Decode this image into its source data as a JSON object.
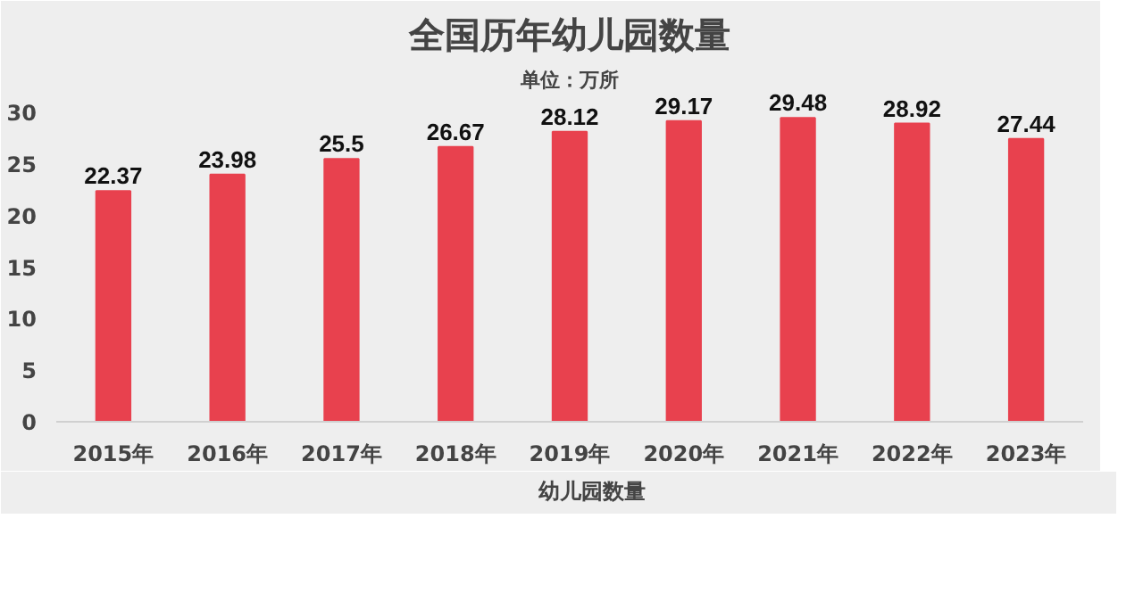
{
  "chart_data": {
    "type": "bar",
    "title": "全国历年幼儿园数量",
    "subtitle": "单位：万所",
    "categories": [
      "2015年",
      "2016年",
      "2017年",
      "2018年",
      "2019年",
      "2020年",
      "2021年",
      "2022年",
      "2023年"
    ],
    "series": [
      {
        "name": "幼儿园数量",
        "color": "#e8414e",
        "values": [
          22.37,
          23.98,
          25.5,
          26.67,
          28.12,
          29.17,
          29.48,
          28.92,
          27.44
        ]
      }
    ],
    "ylim": [
      0,
      32
    ],
    "yticks": [
      0,
      5,
      10,
      15,
      20,
      25,
      30
    ],
    "grid": false,
    "legend": "bottom",
    "data_labels": true
  }
}
